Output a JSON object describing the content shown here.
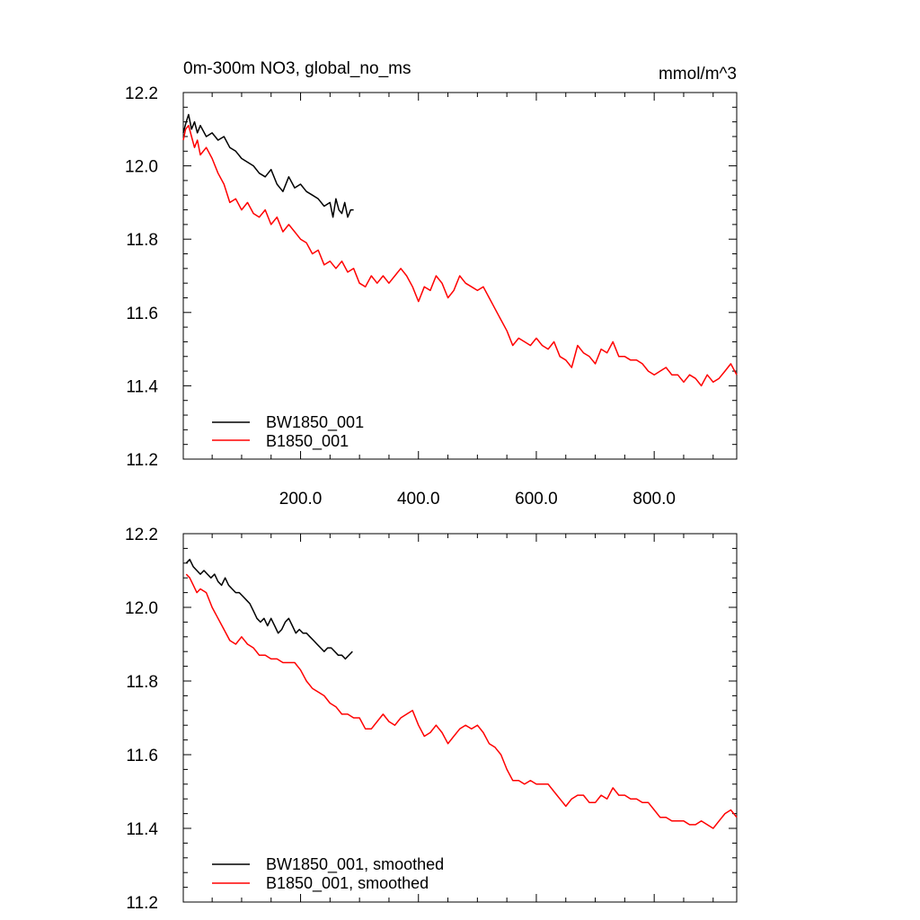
{
  "chart_data": [
    {
      "type": "line",
      "title": "0m-300m NO3, global_no_ms",
      "units": "mmol/m^3",
      "xlim": [
        1,
        940
      ],
      "ylim": [
        11.2,
        12.2
      ],
      "xticks": [
        200,
        400,
        600,
        800
      ],
      "xtick_labels": [
        "200.0",
        "400.0",
        "600.0",
        "800.0"
      ],
      "yticks": [
        11.2,
        11.4,
        11.6,
        11.8,
        12.0,
        12.2
      ],
      "ytick_labels": [
        "11.2",
        "11.4",
        "11.6",
        "11.8",
        "12.0",
        "12.2"
      ],
      "legend_position": "bottom-left",
      "series": [
        {
          "name": "BW1850_001",
          "color": "#000000",
          "x": [
            1,
            6,
            10,
            15,
            20,
            25,
            30,
            40,
            50,
            60,
            70,
            80,
            90,
            100,
            110,
            120,
            130,
            140,
            150,
            160,
            170,
            180,
            190,
            200,
            210,
            220,
            230,
            240,
            250,
            255,
            260,
            265,
            270,
            275,
            280,
            285,
            290
          ],
          "y": [
            12.09,
            12.12,
            12.14,
            12.1,
            12.12,
            12.09,
            12.11,
            12.08,
            12.09,
            12.07,
            12.08,
            12.05,
            12.04,
            12.02,
            12.01,
            12.0,
            11.98,
            11.97,
            11.99,
            11.95,
            11.93,
            11.97,
            11.94,
            11.95,
            11.93,
            11.92,
            11.91,
            11.89,
            11.9,
            11.86,
            11.91,
            11.88,
            11.87,
            11.9,
            11.86,
            11.88,
            11.88
          ]
        },
        {
          "name": "B1850_001",
          "color": "#ff0000",
          "x": [
            1,
            5,
            10,
            15,
            20,
            25,
            30,
            40,
            50,
            60,
            70,
            80,
            90,
            100,
            110,
            120,
            130,
            140,
            150,
            160,
            170,
            180,
            190,
            200,
            210,
            220,
            230,
            240,
            250,
            260,
            270,
            280,
            290,
            300,
            310,
            320,
            330,
            340,
            350,
            360,
            370,
            380,
            390,
            400,
            410,
            420,
            430,
            440,
            450,
            460,
            470,
            480,
            490,
            500,
            510,
            520,
            530,
            540,
            550,
            560,
            570,
            580,
            590,
            600,
            610,
            620,
            630,
            640,
            650,
            660,
            670,
            680,
            690,
            700,
            710,
            720,
            730,
            740,
            750,
            760,
            770,
            780,
            790,
            800,
            810,
            820,
            830,
            840,
            850,
            860,
            870,
            880,
            890,
            900,
            910,
            920,
            930,
            940
          ],
          "y": [
            12.07,
            12.1,
            12.11,
            12.08,
            12.05,
            12.07,
            12.03,
            12.05,
            12.02,
            11.98,
            11.95,
            11.9,
            11.91,
            11.88,
            11.9,
            11.87,
            11.86,
            11.88,
            11.84,
            11.86,
            11.82,
            11.84,
            11.82,
            11.8,
            11.79,
            11.76,
            11.77,
            11.73,
            11.74,
            11.72,
            11.74,
            11.71,
            11.72,
            11.68,
            11.67,
            11.7,
            11.68,
            11.7,
            11.68,
            11.7,
            11.72,
            11.7,
            11.67,
            11.63,
            11.67,
            11.66,
            11.7,
            11.68,
            11.64,
            11.66,
            11.7,
            11.68,
            11.67,
            11.66,
            11.67,
            11.64,
            11.61,
            11.58,
            11.55,
            11.51,
            11.53,
            11.52,
            11.51,
            11.53,
            11.51,
            11.5,
            11.52,
            11.48,
            11.47,
            11.45,
            11.51,
            11.49,
            11.48,
            11.46,
            11.5,
            11.49,
            11.52,
            11.48,
            11.48,
            11.47,
            11.47,
            11.46,
            11.44,
            11.43,
            11.44,
            11.45,
            11.43,
            11.43,
            11.41,
            11.43,
            11.42,
            11.4,
            11.43,
            11.41,
            11.42,
            11.44,
            11.46,
            11.43
          ]
        }
      ]
    },
    {
      "type": "line",
      "title": "",
      "xlim": [
        1,
        940
      ],
      "ylim": [
        11.2,
        12.2
      ],
      "yticks": [
        11.2,
        11.4,
        11.6,
        11.8,
        12.0,
        12.2
      ],
      "ytick_labels": [
        "11.2",
        "11.4",
        "11.6",
        "11.8",
        "12.0",
        "12.2"
      ],
      "legend_position": "bottom-left",
      "series": [
        {
          "name": "BW1850_001, smoothed",
          "color": "#000000",
          "x": [
            6,
            12,
            18,
            24,
            30,
            36,
            42,
            48,
            54,
            60,
            66,
            72,
            78,
            84,
            90,
            96,
            102,
            108,
            114,
            120,
            126,
            132,
            138,
            144,
            150,
            156,
            162,
            168,
            174,
            180,
            186,
            192,
            198,
            204,
            210,
            216,
            222,
            228,
            234,
            240,
            246,
            252,
            258,
            264,
            270,
            276,
            282,
            288
          ],
          "y": [
            12.12,
            12.13,
            12.11,
            12.1,
            12.09,
            12.1,
            12.09,
            12.08,
            12.09,
            12.07,
            12.06,
            12.08,
            12.06,
            12.05,
            12.04,
            12.04,
            12.03,
            12.02,
            12.01,
            11.99,
            11.97,
            11.96,
            11.97,
            11.95,
            11.97,
            11.95,
            11.93,
            11.94,
            11.96,
            11.97,
            11.95,
            11.93,
            11.94,
            11.93,
            11.93,
            11.92,
            11.91,
            11.9,
            11.89,
            11.88,
            11.89,
            11.89,
            11.88,
            11.87,
            11.87,
            11.86,
            11.87,
            11.88
          ]
        },
        {
          "name": "B1850_001, smoothed",
          "color": "#ff0000",
          "x": [
            6,
            12,
            18,
            24,
            30,
            40,
            50,
            60,
            70,
            80,
            90,
            100,
            110,
            120,
            130,
            140,
            150,
            160,
            170,
            180,
            190,
            200,
            210,
            220,
            230,
            240,
            250,
            260,
            270,
            280,
            290,
            300,
            310,
            320,
            330,
            340,
            350,
            360,
            370,
            380,
            390,
            400,
            410,
            420,
            430,
            440,
            450,
            460,
            470,
            480,
            490,
            500,
            510,
            520,
            530,
            540,
            550,
            560,
            570,
            580,
            590,
            600,
            610,
            620,
            630,
            640,
            650,
            660,
            670,
            680,
            690,
            700,
            710,
            720,
            730,
            740,
            750,
            760,
            770,
            780,
            790,
            800,
            810,
            820,
            830,
            840,
            850,
            860,
            870,
            880,
            890,
            900,
            910,
            920,
            930,
            940
          ],
          "y": [
            12.09,
            12.08,
            12.06,
            12.04,
            12.05,
            12.04,
            12.0,
            11.97,
            11.94,
            11.91,
            11.9,
            11.92,
            11.9,
            11.89,
            11.87,
            11.87,
            11.86,
            11.86,
            11.85,
            11.85,
            11.85,
            11.83,
            11.8,
            11.78,
            11.77,
            11.76,
            11.74,
            11.73,
            11.71,
            11.71,
            11.7,
            11.7,
            11.67,
            11.67,
            11.69,
            11.71,
            11.69,
            11.68,
            11.7,
            11.71,
            11.72,
            11.68,
            11.65,
            11.66,
            11.68,
            11.66,
            11.63,
            11.65,
            11.67,
            11.68,
            11.67,
            11.68,
            11.66,
            11.63,
            11.62,
            11.6,
            11.56,
            11.53,
            11.53,
            11.52,
            11.53,
            11.52,
            11.52,
            11.52,
            11.5,
            11.48,
            11.46,
            11.48,
            11.49,
            11.49,
            11.47,
            11.47,
            11.49,
            11.48,
            11.51,
            11.49,
            11.49,
            11.48,
            11.48,
            11.47,
            11.47,
            11.45,
            11.43,
            11.43,
            11.42,
            11.42,
            11.42,
            11.41,
            11.41,
            11.42,
            11.41,
            11.4,
            11.42,
            11.44,
            11.45,
            11.43
          ]
        }
      ]
    }
  ]
}
